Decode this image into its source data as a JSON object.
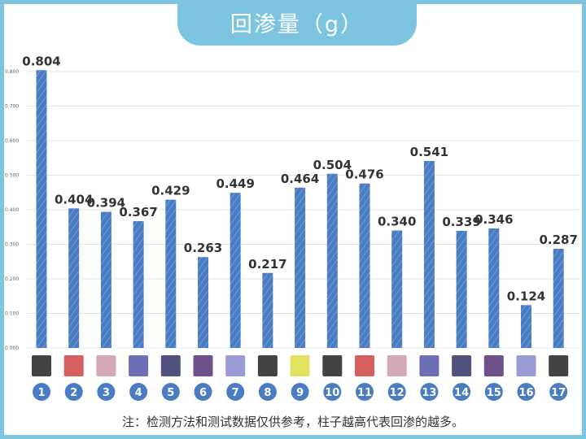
{
  "chart_data": {
    "type": "bar",
    "title": "回渗量（g）",
    "categories": [
      "1",
      "2",
      "3",
      "4",
      "5",
      "6",
      "7",
      "8",
      "9",
      "10",
      "11",
      "12",
      "13",
      "14",
      "15",
      "16",
      "17"
    ],
    "values": [
      0.804,
      0.404,
      0.394,
      0.367,
      0.429,
      0.263,
      0.449,
      0.217,
      0.464,
      0.504,
      0.476,
      0.34,
      0.541,
      0.339,
      0.346,
      0.124,
      0.287
    ],
    "data_labels": [
      "0.804",
      "0.404",
      "0.394",
      "0.367",
      "0.429",
      "0.263",
      "0.449",
      "0.217",
      "0.464",
      "0.504",
      "0.476",
      "0.340",
      "0.541",
      "0.339",
      "0.346",
      "0.124",
      "0.287"
    ],
    "yticks": [
      "0.000",
      "0.100",
      "0.200",
      "0.300",
      "0.400",
      "0.500",
      "0.600",
      "0.700",
      "0.800"
    ],
    "ylim": [
      0,
      0.8
    ],
    "grid": true,
    "bar_color": "#4a7cc4",
    "frame_color": "#7cc4e0",
    "label_badge_color": "#4a7cc4"
  },
  "footnote": "注：检测方法和测试数据仅供参考，柱子越高代表回渗的越多。"
}
